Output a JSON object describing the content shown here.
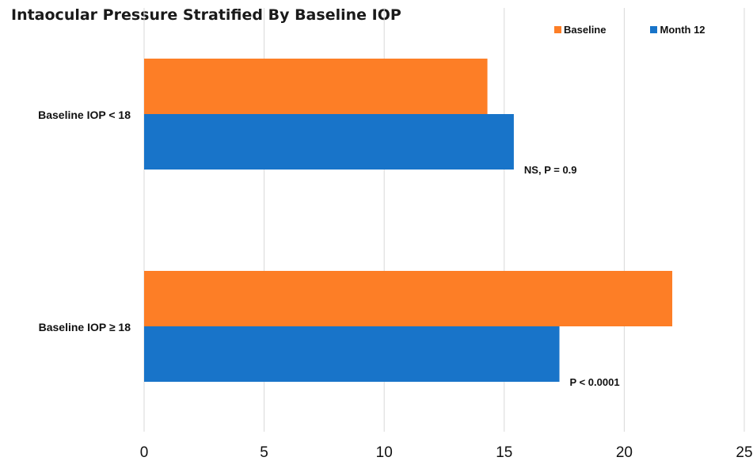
{
  "chart_data": {
    "type": "bar",
    "orientation": "horizontal",
    "title": "Intaocular Pressure Stratified By Baseline IOP",
    "categories": [
      "Baseline IOP < 18",
      "Baseline IOP ≥ 18"
    ],
    "series": [
      {
        "name": "Baseline",
        "values": [
          14.3,
          22.0
        ],
        "color": "#fd7e26"
      },
      {
        "name": "Month 12",
        "values": [
          15.4,
          17.3
        ],
        "color": "#1874c9"
      }
    ],
    "annotations": [
      "NS, P = 0.9",
      "P < 0.0001"
    ],
    "xticks": [
      "0",
      "5",
      "10",
      "15",
      "20",
      "25"
    ],
    "xlim": [
      0,
      25
    ],
    "xlabel": "",
    "ylabel": "",
    "grid": true,
    "legend_position": "top-right"
  }
}
